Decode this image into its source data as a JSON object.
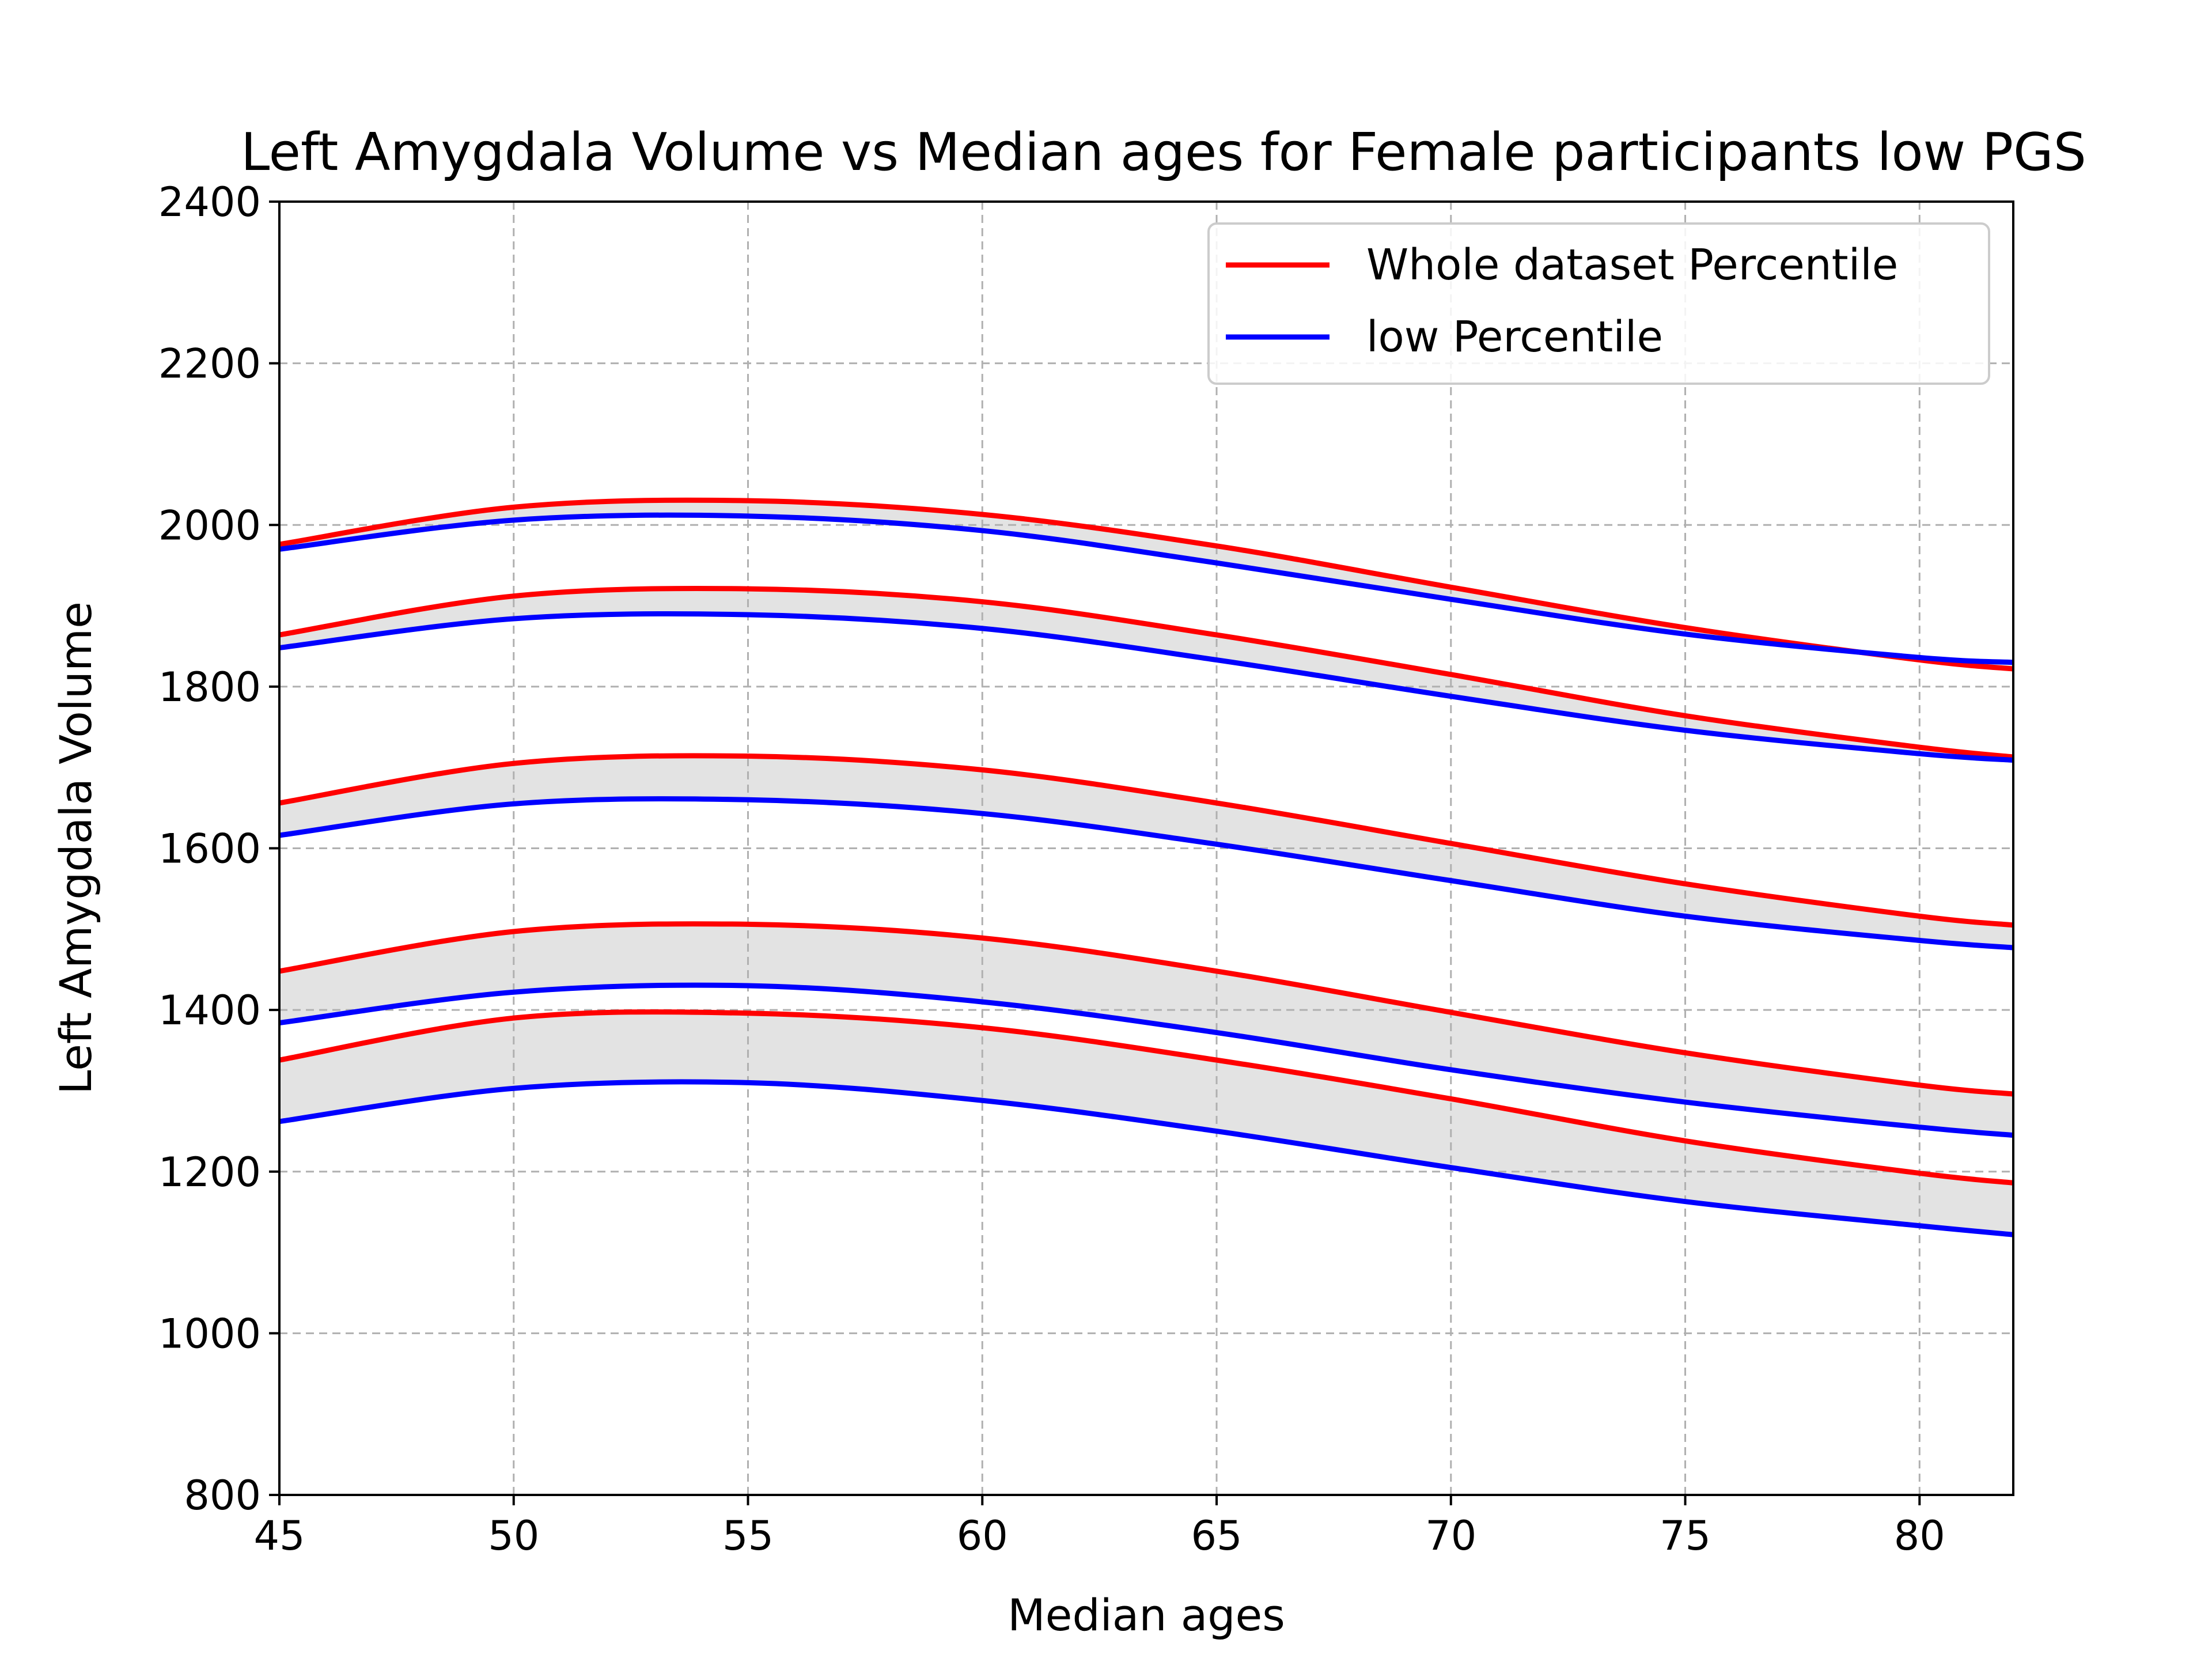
{
  "chart_data": {
    "type": "line",
    "title": "Left Amygdala Volume vs Median ages for Female participants low PGS",
    "xlabel": "Median ages",
    "ylabel": "Left Amygdala Volume",
    "xlim": [
      45,
      82
    ],
    "ylim": [
      800,
      2400
    ],
    "x_ticks": [
      45,
      50,
      55,
      60,
      65,
      70,
      75,
      80
    ],
    "y_ticks": [
      800,
      1000,
      1200,
      1400,
      1600,
      1800,
      2000,
      2200,
      2400
    ],
    "grid": true,
    "legend_position": "upper right",
    "legend": [
      {
        "label": "Whole dataset Percentile",
        "color": "#ff0000"
      },
      {
        "label": "low Percentile",
        "color": "#0000ff"
      }
    ],
    "shading_color": "#e3e3e3",
    "x": [
      45,
      50,
      55,
      60,
      65,
      70,
      75,
      80,
      82
    ],
    "series": [
      {
        "group": "Whole dataset Percentile",
        "color": "#ff0000",
        "values": [
          1338,
          1390,
          1396,
          1378,
          1338,
          1290,
          1238,
          1198,
          1186
        ]
      },
      {
        "group": "low Percentile",
        "color": "#0000ff",
        "values": [
          1262,
          1303,
          1310,
          1288,
          1250,
          1205,
          1163,
          1133,
          1122
        ]
      },
      {
        "group": "Whole dataset Percentile",
        "color": "#ff0000",
        "values": [
          1448,
          1497,
          1506,
          1489,
          1448,
          1397,
          1347,
          1307,
          1296
        ]
      },
      {
        "group": "low Percentile",
        "color": "#0000ff",
        "values": [
          1384,
          1422,
          1430,
          1410,
          1372,
          1326,
          1286,
          1255,
          1245
        ]
      },
      {
        "group": "Whole dataset Percentile",
        "color": "#ff0000",
        "values": [
          1656,
          1705,
          1714,
          1697,
          1656,
          1606,
          1556,
          1516,
          1505
        ]
      },
      {
        "group": "low Percentile",
        "color": "#0000ff",
        "values": [
          1616,
          1655,
          1660,
          1643,
          1605,
          1560,
          1516,
          1486,
          1477
        ]
      },
      {
        "group": "Whole dataset Percentile",
        "color": "#ff0000",
        "values": [
          1864,
          1912,
          1921,
          1905,
          1864,
          1815,
          1764,
          1725,
          1713
        ]
      },
      {
        "group": "low Percentile",
        "color": "#0000ff",
        "values": [
          1848,
          1884,
          1889,
          1872,
          1833,
          1788,
          1746,
          1717,
          1709
        ]
      },
      {
        "group": "Whole dataset Percentile",
        "color": "#ff0000",
        "values": [
          1976,
          2022,
          2030,
          2013,
          1974,
          1923,
          1873,
          1833,
          1822
        ]
      },
      {
        "group": "low Percentile",
        "color": "#0000ff",
        "values": [
          1970,
          2006,
          2011,
          1993,
          1953,
          1908,
          1865,
          1836,
          1830
        ]
      }
    ],
    "bands": [
      [
        0,
        1
      ],
      [
        2,
        3
      ],
      [
        4,
        5
      ],
      [
        6,
        7
      ],
      [
        8,
        9
      ]
    ]
  }
}
